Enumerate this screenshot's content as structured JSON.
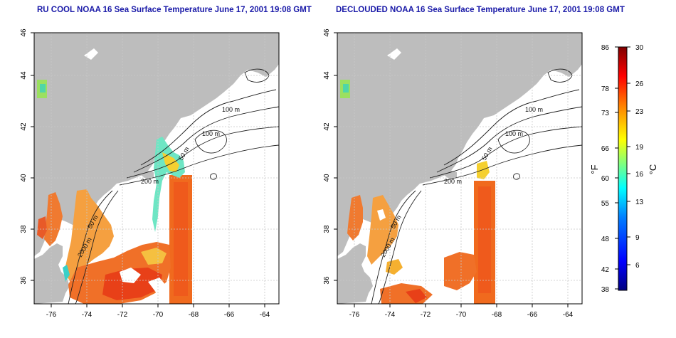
{
  "maps": {
    "left": {
      "title": "RU COOL NOAA 16 Sea Surface Temperature June 17, 2001 19:08 GMT",
      "contour_labels": [
        "100 m",
        "100 m",
        "200 m",
        "50 m",
        "50 m",
        "2000 m"
      ]
    },
    "right": {
      "title": "DECLOUDED NOAA 16 Sea Surface Temperature June 17, 2001 19:08 GMT",
      "contour_labels": [
        "100 m",
        "100 m",
        "200 m",
        "50 m",
        "50 m",
        "2000 m"
      ]
    }
  },
  "axes": {
    "lon_ticks": [
      "-76",
      "-74",
      "-72",
      "-70",
      "-68",
      "-66",
      "-64"
    ],
    "lat_ticks": [
      "36",
      "38",
      "40",
      "42",
      "44",
      "46"
    ]
  },
  "colorbar": {
    "left_unit": "°F",
    "right_unit": "°C",
    "fahrenheit_ticks": [
      "86",
      "78",
      "73",
      "66",
      "60",
      "55",
      "48",
      "42",
      "38"
    ],
    "celsius_ticks": [
      "30",
      "26",
      "23",
      "19",
      "16",
      "13",
      "9",
      "6"
    ],
    "colors": [
      "#00007f",
      "#0000ff",
      "#007fff",
      "#00ffff",
      "#7fff7f",
      "#ffff00",
      "#ff7f00",
      "#ff0000",
      "#7f0000"
    ]
  },
  "colors": {
    "land": "#bdbdbd",
    "ocean": "#ffffff",
    "grid": "#c8c8c8",
    "sst_warm": "#f06a1e",
    "sst_hot": "#e8401a",
    "sst_mid": "#f5b030",
    "sst_cool": "#2ad6c8",
    "title": "#1a1aa8"
  }
}
